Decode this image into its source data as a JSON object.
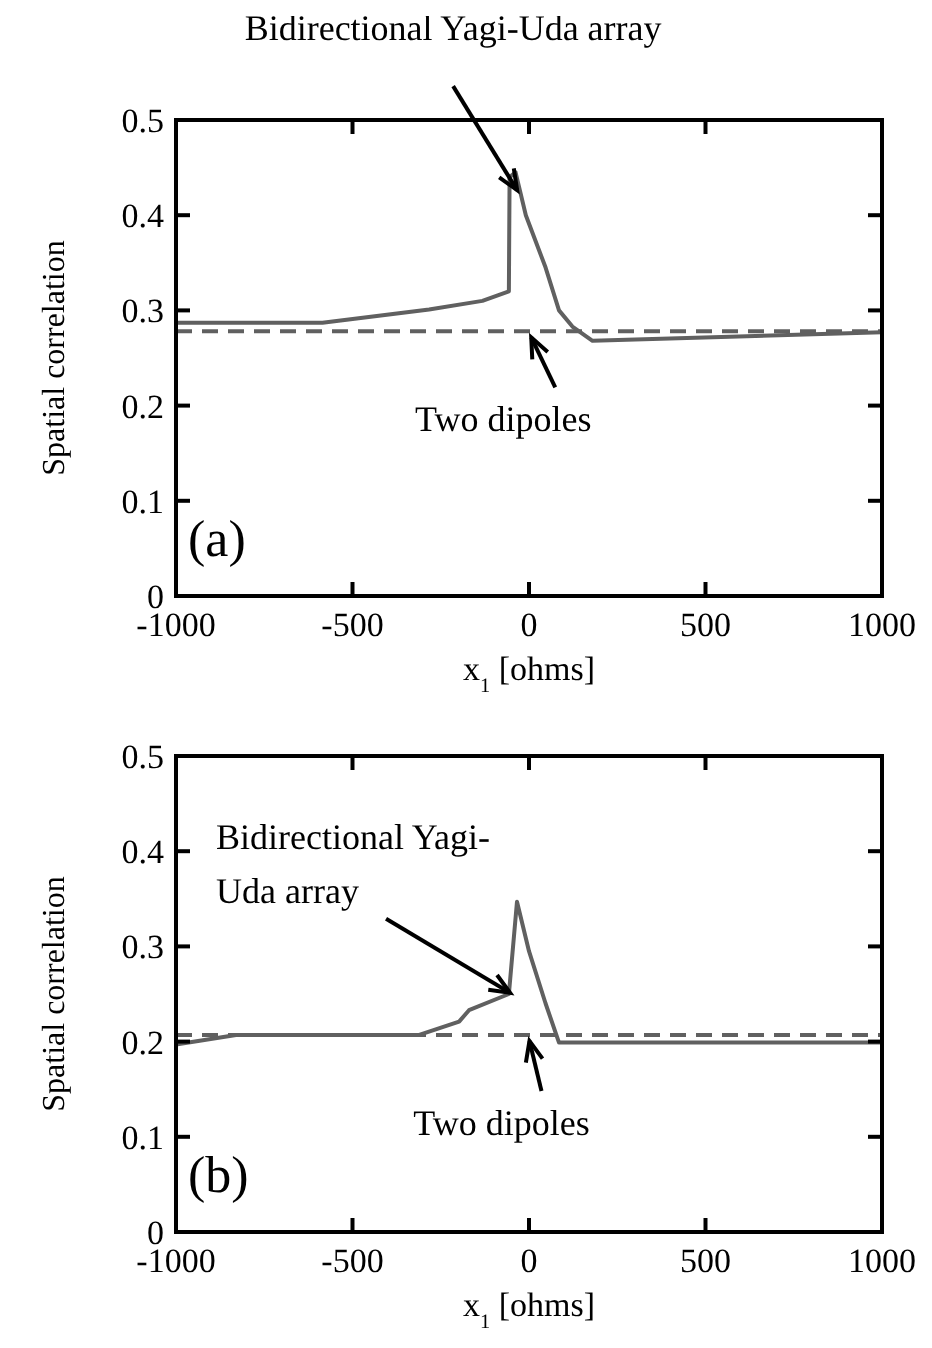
{
  "chart_data": [
    {
      "type": "line",
      "xlabel": "x$_{1}$ [ohms]",
      "ylabel": "Spatial correlation",
      "xlim": [
        -1000,
        1000
      ],
      "ylim": [
        0,
        0.5
      ],
      "xticks": [
        -1000,
        -500,
        0,
        500,
        1000
      ],
      "yticks": [
        0,
        0.1,
        0.2,
        0.3,
        0.4,
        0.5
      ],
      "grid": false,
      "series": [
        {
          "color": "#606060",
          "line_style": "solid",
          "x": [
            -1000,
            -585,
            -283,
            -132,
            -57,
            -55,
            -38,
            -9,
            47,
            85,
            123,
            180,
            1000
          ],
          "values": [
            0.287,
            0.287,
            0.301,
            0.31,
            0.32,
            0.44,
            0.445,
            0.4,
            0.345,
            0.3,
            0.283,
            0.268,
            0.277
          ]
        },
        {
          "color": "#606060",
          "line_style": "dashed",
          "x": [
            -1000,
            1000
          ],
          "values": [
            0.278,
            0.278
          ]
        }
      ],
      "annotations": [
        {
          "text": "Bidirectional Yagi-Uda array",
          "x": -45,
          "y": 0.42
        },
        {
          "text": "Two dipoles",
          "x": -5,
          "y": 0.278
        },
        "(a)"
      ]
    },
    {
      "type": "line",
      "xlabel": "x$_{1}$ [ohms]",
      "ylabel": "Spatial correlation",
      "xlim": [
        -1000,
        1000
      ],
      "ylim": [
        0,
        0.5
      ],
      "xticks": [
        -1000,
        -500,
        0,
        500,
        1000
      ],
      "yticks": [
        0,
        0.1,
        0.2,
        0.3,
        0.4,
        0.5
      ],
      "grid": false,
      "series": [
        {
          "color": "#606060",
          "line_style": "solid",
          "x": [
            -1000,
            -830,
            -311,
            -198,
            -170,
            -57,
            -34,
            0,
            47,
            85,
            1000
          ],
          "values": [
            0.197,
            0.207,
            0.207,
            0.221,
            0.233,
            0.25,
            0.347,
            0.295,
            0.24,
            0.199,
            0.199
          ]
        },
        {
          "color": "#606060",
          "line_style": "dashed",
          "x": [
            -1000,
            1000
          ],
          "values": [
            0.207,
            0.207
          ]
        }
      ],
      "annotations": [
        {
          "text": "Bidirectional Yagi-Uda array",
          "x": -65,
          "y": 0.245
        },
        {
          "text": "Two dipoles",
          "x": -10,
          "y": 0.207
        },
        "(b)"
      ]
    }
  ]
}
